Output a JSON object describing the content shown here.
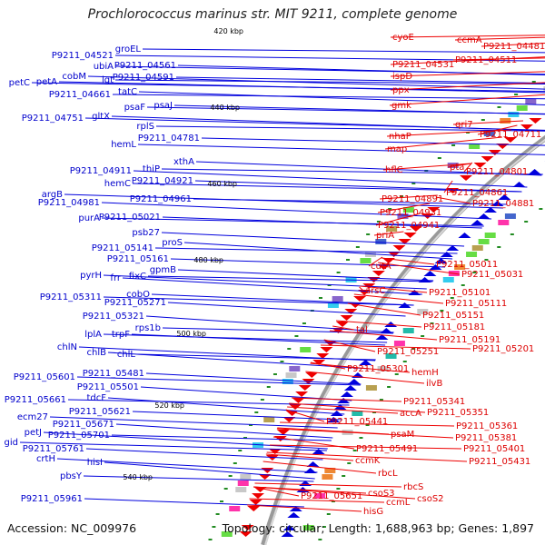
{
  "title": "Prochlorococcus marinus str. MIT 9211, complete genome",
  "footer": {
    "accession": "Accession: NC_009976",
    "info": "Topology: circular; Length: 1,688,963 bp; Genes: 1,897"
  },
  "colors": {
    "forward": "#0000dd",
    "reverse": "#ee0000",
    "backbone": "#999999",
    "tick": "#228b22"
  },
  "ticks": [
    {
      "label": "420 kbp"
    },
    {
      "label": "440 kbp"
    },
    {
      "label": "460 kbp"
    },
    {
      "label": "480 kbp"
    },
    {
      "label": "500 kbp"
    },
    {
      "label": "520 kbp"
    },
    {
      "label": "540 kbp"
    }
  ],
  "left_labels": [
    "420 kbp",
    "groEL",
    "P9211_04521",
    "ubiA",
    "P9211_04561",
    "cobM",
    "lgt",
    "P9211_04591",
    "petC",
    "petA",
    "tatC",
    "P9211_04661",
    "psaF",
    "psaJ",
    "440 kbp",
    "P9211_04751",
    "gltX",
    "rplS",
    "P9211_04781",
    "hemL",
    "xthA",
    "P9211_04911",
    "thiP",
    "hemC",
    "P9211_04921",
    "460 kbp",
    "argB",
    "P9211_04981",
    "P9211_04961",
    "purA",
    "P9211_05021",
    "psb27",
    "proS",
    "P9211_05141",
    "P9211_05161",
    "480 kbp",
    "gpmB",
    "pyrH",
    "frr",
    "fixC",
    "P9211_05311",
    "cobO",
    "P9211_05271",
    "P9211_05321",
    "rps1b",
    "lplA",
    "trpF",
    "500 kbp",
    "chlN",
    "chlB",
    "chlL",
    "P9211_05601",
    "P9211_05481",
    "P9211_05501",
    "tdcF",
    "520 kbp",
    "P9211_05661",
    "P9211_05621",
    "ecm27",
    "P9211_05671",
    "petJ",
    "P9211_05701",
    "gid",
    "P9211_05761",
    "crtH",
    "hisI",
    "540 kbp",
    "pbsY",
    "P9211_05961"
  ],
  "right_labels": [
    "cyoE",
    "ccmA",
    "P9211_04481",
    "P9211_04531",
    "P9211_04511",
    "ispD",
    "ppx",
    "gmk",
    "qri7",
    "nhaP",
    "P9211_04711",
    "map",
    "pta",
    "hflC",
    "P9211_04801",
    "P9211_04861",
    "P9211_04891",
    "P9211_04881",
    "P9211_04931",
    "P9211_04941",
    "priA",
    "P9211_05011",
    "cutA",
    "P9211_05031",
    "arsC",
    "P9211_05101",
    "P9211_05111",
    "P9211_05151",
    "tal",
    "P9211_05181",
    "P9211_05191",
    "P9211_05251",
    "P9211_05201",
    "P9211_05301",
    "hemH",
    "ilvB",
    "P9211_05341",
    "accA",
    "P9211_05351",
    "P9211_05441",
    "P9211_05361",
    "psaM",
    "P9211_05381",
    "P9211_05491",
    "P9211_05401",
    "ccmK",
    "P9211_05431",
    "rbcL",
    "rbcS",
    "csoS3",
    "P9211_05651",
    "csoS2",
    "ccmL",
    "hisG"
  ]
}
